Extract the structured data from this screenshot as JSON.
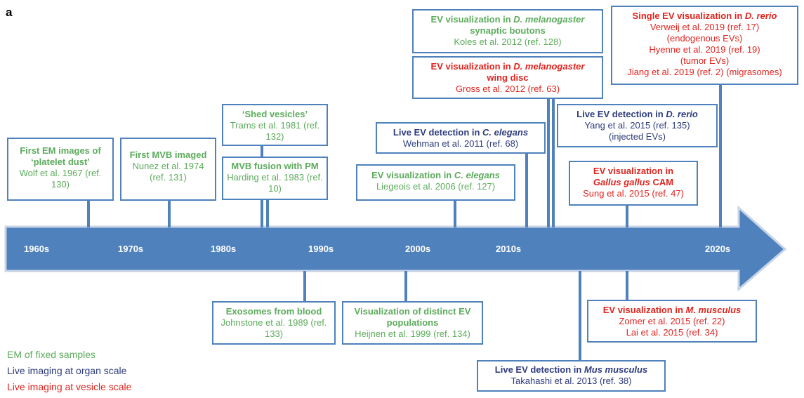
{
  "panel_label": "a",
  "decades": [
    "1960s",
    "1970s",
    "1980s",
    "1990s",
    "2000s",
    "2010s",
    "2020s"
  ],
  "events": {
    "em_1967": {
      "title": "First EM images of ‘platelet dust’",
      "citation": "Wolf et al. 1967 (ref. 130)"
    },
    "mvb_1974": {
      "title": "First MVB imaged",
      "citation": "Nunez et al. 1974 (ref. 131)"
    },
    "shed_1981": {
      "title": "‘Shed vesicles’",
      "citation": "Trams et al. 1981 (ref. 132)"
    },
    "mvb_pm_1983": {
      "title": "MVB fusion with PM",
      "citation": "Harding et al. 1983 (ref. 10)"
    },
    "exo_1989": {
      "title": "Exosomes from blood",
      "citation": "Johnstone et al. 1989 (ref. 133)"
    },
    "distinct_1999": {
      "title": "Visualization of distinct EV populations",
      "citation": "Heijnen et al. 1999 (ref. 134)"
    },
    "celegans_2006": {
      "title_pre": "EV visualization in ",
      "title_italic": "C. elegans",
      "citation": "Liegeois et al. 2006 (ref. 127)"
    },
    "celegans_2011": {
      "title_pre": "Live EV detection in ",
      "title_italic": "C. elegans",
      "citation": "Wehman et al. 2011 (ref. 68)"
    },
    "dmel_syn_2012": {
      "title_pre": "EV visualization in ",
      "title_italic": "D. melanogaster",
      "title_post": "synaptic boutons",
      "citation": "Koles et al. 2012 (ref. 128)"
    },
    "dmel_wing_2012": {
      "title_pre": "EV visualization in ",
      "title_italic": "D. melanogaster",
      "title_post": "wing disc",
      "citation": "Gross et al. 2012 (ref. 63)"
    },
    "mus_2013": {
      "title_pre": "Live EV detection in ",
      "title_italic": "Mus musculus",
      "citation": "Takahashi et al. 2013 (ref. 38)"
    },
    "drerio_2015": {
      "title_pre": "Live EV detection in ",
      "title_italic": "D. rerio",
      "citation": "Yang et al. 2015 (ref. 135)",
      "note": "(injected EVs)"
    },
    "gallus_2015": {
      "title_pre": "EV visualization in",
      "title_italic": "Gallus gallus",
      "title_post": " CAM",
      "citation": "Sung et al. 2015 (ref. 47)"
    },
    "mmus_2015": {
      "title_pre": "EV visualization in ",
      "title_italic": "M. musculus",
      "citations": [
        "Zomer et al. 2015 (ref. 22)",
        "Lai et al. 2015 (ref. 34)"
      ]
    },
    "single_drerio_2019": {
      "title_pre": "Single EV visualization in ",
      "title_italic": "D. rerio",
      "lines": [
        "Verweij et al. 2019 (ref. 17)",
        "(endogenous EVs)",
        "Hyenne et al. 2019 (ref. 19)",
        "(tumor EVs)",
        "Jiang et al. 2019 (ref. 2) (migrasomes)"
      ]
    }
  },
  "legend": [
    {
      "label": "EM of fixed samples",
      "color": "#5cab5c"
    },
    {
      "label": "Live imaging at organ scale",
      "color": "#2e3c7d"
    },
    {
      "label": "Live imaging at vesicle scale",
      "color": "#e0241f"
    }
  ],
  "colors": {
    "arrow": "#4f81bd",
    "green": "#5cab5c",
    "navy": "#2e3c7d",
    "red": "#e0241f"
  }
}
